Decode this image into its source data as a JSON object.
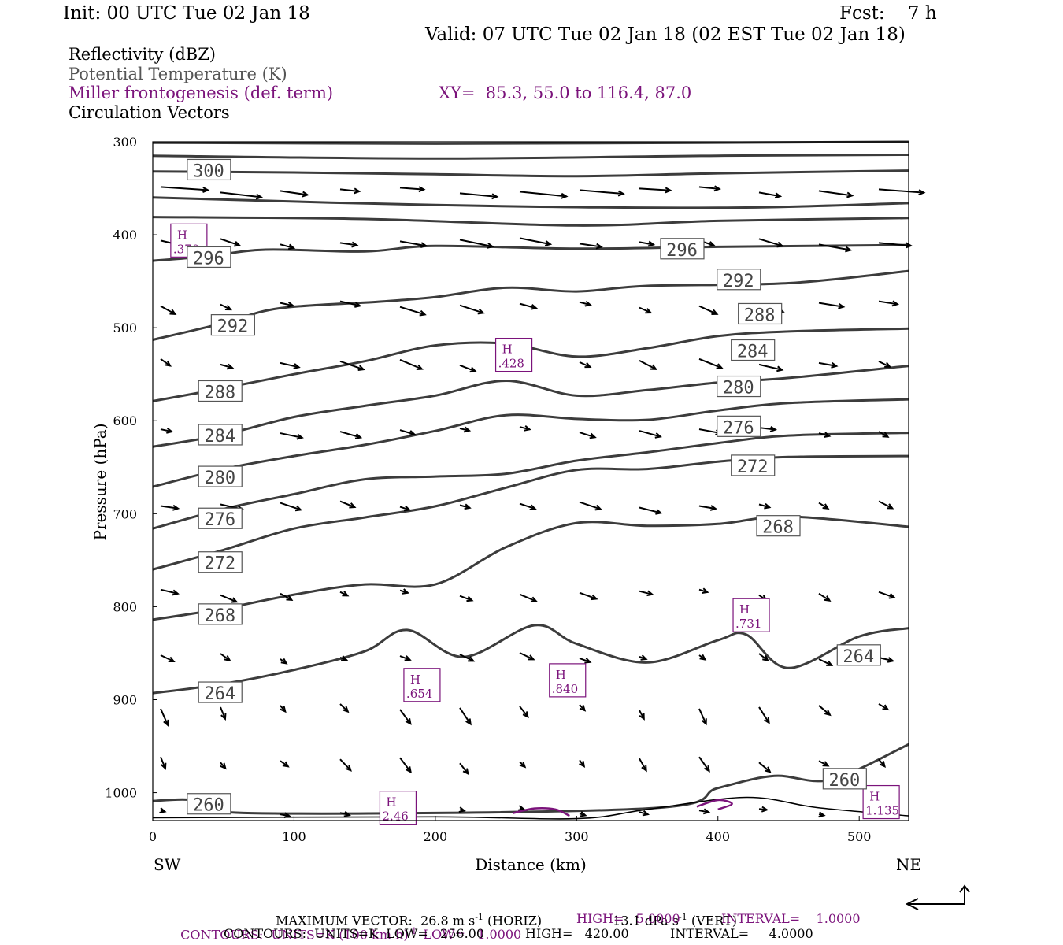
{
  "header": {
    "init": "Init: 00 UTC Tue 02 Jan 18",
    "fcst": "Fcst:    7 h",
    "valid": "Valid: 07 UTC Tue 02 Jan 18 (02 EST Tue 02 Jan 18)",
    "legend_reflectivity": "Reflectivity (dBZ)",
    "legend_theta": "Potential Temperature (K)",
    "legend_frontogenesis": "Miller frontogenesis (def. term)",
    "xy": "XY=  85.3, 55.0 to 116.4, 87.0",
    "legend_vectors": "Circulation Vectors"
  },
  "colors": {
    "theta": "#3c3c3c",
    "frontogenesis": "#7b137b",
    "vectors": "#000000",
    "terrain": "#000000"
  },
  "footer": {
    "max_vector_prefix": "MAXIMUM VECTOR:  26.8 m s",
    "max_vector_sup": "-1",
    "max_vector_horiz": " (HORIZ)",
    "max_vector_vert_prefix": "13.1 dPa s",
    "max_vector_vert_sup": "-1",
    "max_vector_vert_suffix": " (VERT)",
    "contours1_prefix": "CONTOURS:  UNITS=K (100 km h)",
    "contours1_sup": "-1",
    "contours1_low": "LOW=   1.0000",
    "contours1_high": "HIGH=   5.0000",
    "contours1_interval": "INTERVAL=    1.0000",
    "contours2": "CONTOURS:  UNITS=K  LOW=   256.00",
    "contours2_high": "HIGH=   420.00",
    "contours2_interval": "INTERVAL=     4.0000"
  },
  "chart_data": {
    "type": "line",
    "title": "",
    "xlabel": "Distance (km)",
    "ylabel": "Pressure (hPa)",
    "xlim": [
      0,
      535
    ],
    "ylim": [
      1030,
      300
    ],
    "y_scale": "linear, inverted",
    "x_ticks": [
      0,
      100,
      200,
      300,
      400,
      500
    ],
    "y_ticks": [
      300,
      400,
      500,
      600,
      700,
      800,
      900,
      1000
    ],
    "x_end_labels": [
      "SW",
      "NE"
    ],
    "isentropes": [
      {
        "theta": 300,
        "points": [
          [
            0,
            332
          ],
          [
            100,
            333
          ],
          [
            200,
            335
          ],
          [
            300,
            337
          ],
          [
            400,
            334
          ],
          [
            535,
            331
          ]
        ]
      },
      {
        "theta": 296,
        "points": [
          [
            0,
            428
          ],
          [
            40,
            423
          ],
          [
            80,
            416
          ],
          [
            150,
            418
          ],
          [
            200,
            412
          ],
          [
            300,
            415
          ],
          [
            400,
            413
          ],
          [
            535,
            411
          ]
        ]
      },
      {
        "theta": 292,
        "points": [
          [
            0,
            513
          ],
          [
            50,
            495
          ],
          [
            90,
            479
          ],
          [
            160,
            472
          ],
          [
            200,
            467
          ],
          [
            250,
            457
          ],
          [
            300,
            461
          ],
          [
            350,
            455
          ],
          [
            450,
            452
          ],
          [
            535,
            439
          ]
        ]
      },
      {
        "theta": 288,
        "points": [
          [
            0,
            579
          ],
          [
            50,
            565
          ],
          [
            100,
            550
          ],
          [
            150,
            536
          ],
          [
            200,
            519
          ],
          [
            250,
            517
          ],
          [
            300,
            531
          ],
          [
            350,
            522
          ],
          [
            400,
            509
          ],
          [
            450,
            504
          ],
          [
            535,
            501
          ]
        ]
      },
      {
        "theta": 284,
        "points": [
          [
            0,
            628
          ],
          [
            50,
            615
          ],
          [
            100,
            596
          ],
          [
            150,
            584
          ],
          [
            200,
            573
          ],
          [
            250,
            557
          ],
          [
            300,
            573
          ],
          [
            350,
            567
          ],
          [
            400,
            559
          ],
          [
            450,
            554
          ],
          [
            535,
            541
          ]
        ]
      },
      {
        "theta": 280,
        "points": [
          [
            0,
            671
          ],
          [
            50,
            652
          ],
          [
            100,
            638
          ],
          [
            150,
            626
          ],
          [
            200,
            611
          ],
          [
            250,
            594
          ],
          [
            300,
            598
          ],
          [
            350,
            599
          ],
          [
            400,
            589
          ],
          [
            450,
            581
          ],
          [
            535,
            577
          ]
        ]
      },
      {
        "theta": 276,
        "points": [
          [
            0,
            716
          ],
          [
            50,
            695
          ],
          [
            100,
            679
          ],
          [
            150,
            663
          ],
          [
            200,
            660
          ],
          [
            250,
            657
          ],
          [
            300,
            643
          ],
          [
            350,
            634
          ],
          [
            400,
            624
          ],
          [
            450,
            616
          ],
          [
            535,
            613
          ]
        ]
      },
      {
        "theta": 272,
        "points": [
          [
            0,
            760
          ],
          [
            50,
            739
          ],
          [
            100,
            716
          ],
          [
            150,
            704
          ],
          [
            200,
            692
          ],
          [
            250,
            672
          ],
          [
            300,
            653
          ],
          [
            350,
            652
          ],
          [
            400,
            644
          ],
          [
            450,
            639
          ],
          [
            535,
            638
          ]
        ]
      },
      {
        "theta": 268,
        "points": [
          [
            0,
            814
          ],
          [
            50,
            802
          ],
          [
            100,
            787
          ],
          [
            150,
            776
          ],
          [
            200,
            776
          ],
          [
            250,
            736
          ],
          [
            300,
            710
          ],
          [
            350,
            713
          ],
          [
            400,
            711
          ],
          [
            450,
            703
          ],
          [
            535,
            714
          ]
        ]
      },
      {
        "theta": 264,
        "points": [
          [
            0,
            893
          ],
          [
            50,
            883
          ],
          [
            100,
            868
          ],
          [
            150,
            848
          ],
          [
            180,
            825
          ],
          [
            220,
            854
          ],
          [
            270,
            820
          ],
          [
            300,
            840
          ],
          [
            350,
            860
          ],
          [
            400,
            836
          ],
          [
            420,
            830
          ],
          [
            450,
            866
          ],
          [
            500,
            832
          ],
          [
            535,
            823
          ]
        ]
      },
      {
        "theta": 260,
        "points": [
          [
            0,
            1009
          ],
          [
            30,
            1008
          ],
          [
            70,
            1022
          ],
          [
            350,
            1017
          ],
          [
            400,
            995
          ],
          [
            440,
            982
          ],
          [
            480,
            986
          ],
          [
            535,
            948
          ]
        ]
      }
    ],
    "frontogenesis_maxima": [
      {
        "label": "H",
        "value": ".370",
        "x": 25,
        "p": 407
      },
      {
        "label": "H",
        "value": ".428",
        "x": 255,
        "p": 530
      },
      {
        "label": "H",
        "value": ".731",
        "x": 423,
        "p": 810
      },
      {
        "label": "H",
        "value": ".654",
        "x": 190,
        "p": 885
      },
      {
        "label": "H",
        "value": ".840",
        "x": 293,
        "p": 880
      },
      {
        "label": "H",
        "value": "2.46",
        "x": 173,
        "p": 1017
      },
      {
        "label": "H",
        "value": "1.135",
        "x": 515,
        "p": 1011
      }
    ],
    "terrain": [
      [
        0,
        1027
      ],
      [
        200,
        1026
      ],
      [
        300,
        1028
      ],
      [
        350,
        1018
      ],
      [
        420,
        1005
      ],
      [
        470,
        1016
      ],
      [
        535,
        1025
      ]
    ]
  }
}
